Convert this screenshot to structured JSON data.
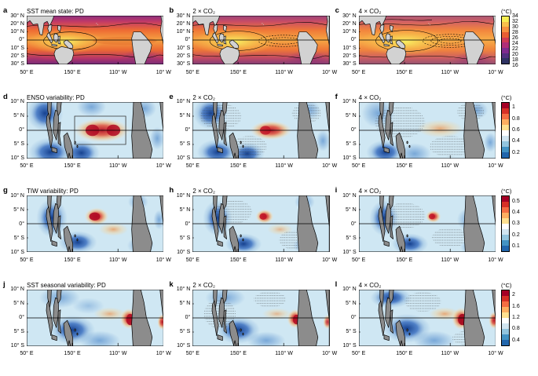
{
  "figure": {
    "rows": [
      {
        "panels": [
          {
            "letter": "a",
            "title": "SST mean state: PD"
          },
          {
            "letter": "b",
            "title": "2 × CO₂"
          },
          {
            "letter": "c",
            "title": "4 × CO₂"
          }
        ],
        "yticks": [
          "30° N",
          "20° N",
          "10° N",
          "0°",
          "10° S",
          "20° S",
          "30° S"
        ],
        "xticks": [
          "50° E",
          "150° E",
          "110° W",
          "10° W"
        ],
        "colorbar": {
          "unit": "(°C)",
          "ticks": [
            "34",
            "32",
            "30",
            "28",
            "26",
            "24",
            "22",
            "20",
            "18",
            "16"
          ],
          "colors": [
            "#f6ee53",
            "#f8c04b",
            "#f69140",
            "#e85e33",
            "#cf3a55",
            "#b02e77",
            "#7f2b8e",
            "#52307f",
            "#2f3263"
          ]
        }
      },
      {
        "panels": [
          {
            "letter": "d",
            "title": "ENSO variability: PD"
          },
          {
            "letter": "e",
            "title": "2 × CO₂"
          },
          {
            "letter": "f",
            "title": "4 × CO₂"
          }
        ],
        "yticks": [
          "10° N",
          "5° N",
          "0°",
          "5° S",
          "10° S"
        ],
        "xticks": [
          "50° E",
          "150° E",
          "110° W",
          "10° W"
        ],
        "colorbar": {
          "unit": "(°C)",
          "ticks": [
            "1",
            "0.8",
            "0.6",
            "0.4",
            "0.2"
          ],
          "colors": [
            "#a50026",
            "#d73027",
            "#f46d43",
            "#fdae61",
            "#fee090",
            "#ffffff",
            "#d1e5f0",
            "#92c5de",
            "#4393c3",
            "#2166ac"
          ]
        }
      },
      {
        "panels": [
          {
            "letter": "g",
            "title": "TIW variability: PD"
          },
          {
            "letter": "h",
            "title": "2 × CO₂"
          },
          {
            "letter": "i",
            "title": "4 × CO₂"
          }
        ],
        "yticks": [
          "10° N",
          "5° N",
          "0°",
          "5° S",
          "10° S"
        ],
        "xticks": [
          "50° E",
          "150° E",
          "110° W",
          "10° W"
        ],
        "colorbar": {
          "unit": "(°C)",
          "ticks": [
            "0.5",
            "0.4",
            "0.3",
            "0.2",
            "0.1"
          ],
          "colors": [
            "#a50026",
            "#d73027",
            "#f46d43",
            "#fdae61",
            "#fee090",
            "#ffffff",
            "#d1e5f0",
            "#92c5de",
            "#4393c3",
            "#2166ac"
          ]
        }
      },
      {
        "panels": [
          {
            "letter": "j",
            "title": "SST seasonal variability: PD"
          },
          {
            "letter": "k",
            "title": "2 × CO₂"
          },
          {
            "letter": "l",
            "title": "4 × CO₂"
          }
        ],
        "yticks": [
          "10° N",
          "5° N",
          "0°",
          "5° S",
          "10° S"
        ],
        "xticks": [
          "50° E",
          "150° E",
          "110° W",
          "10° W"
        ],
        "colorbar": {
          "unit": "(°C)",
          "ticks": [
            "2",
            "1.6",
            "1.2",
            "0.8",
            "0.4"
          ],
          "colors": [
            "#a50026",
            "#d73027",
            "#f46d43",
            "#fdae61",
            "#fee090",
            "#ffffff",
            "#d1e5f0",
            "#92c5de",
            "#4393c3",
            "#2166ac"
          ]
        }
      }
    ]
  },
  "chart_data": {
    "type": "heatmap",
    "lon_ticks": [
      "50° E",
      "150° E",
      "110° W",
      "10° W"
    ],
    "rows": [
      {
        "panels": [
          "a",
          "b",
          "c"
        ],
        "variable": "SST mean state",
        "scenarios": [
          "PD",
          "2 × CO₂",
          "4 × CO₂"
        ],
        "lat_ticks": [
          "30° N",
          "20° N",
          "10° N",
          "0°",
          "10° S",
          "20° S",
          "30° S"
        ],
        "colorbar_ticks": [
          34,
          32,
          30,
          28,
          26,
          24,
          22,
          20,
          18,
          16
        ],
        "unit": "°C"
      },
      {
        "panels": [
          "d",
          "e",
          "f"
        ],
        "variable": "ENSO variability",
        "scenarios": [
          "PD",
          "2 × CO₂",
          "4 × CO₂"
        ],
        "lat_ticks": [
          "10° N",
          "5° N",
          "0°",
          "5° S",
          "10° S"
        ],
        "colorbar_ticks": [
          1,
          0.8,
          0.6,
          0.4,
          0.2
        ],
        "unit": "°C"
      },
      {
        "panels": [
          "g",
          "h",
          "i"
        ],
        "variable": "TIW variability",
        "scenarios": [
          "PD",
          "2 × CO₂",
          "4 × CO₂"
        ],
        "lat_ticks": [
          "10° N",
          "5° N",
          "0°",
          "5° S",
          "10° S"
        ],
        "colorbar_ticks": [
          0.5,
          0.4,
          0.3,
          0.2,
          0.1
        ],
        "unit": "°C"
      },
      {
        "panels": [
          "j",
          "k",
          "l"
        ],
        "variable": "SST seasonal variability",
        "scenarios": [
          "PD",
          "2 × CO₂",
          "4 × CO₂"
        ],
        "lat_ticks": [
          "10° N",
          "5° N",
          "0°",
          "5° S",
          "10° S"
        ],
        "colorbar_ticks": [
          2,
          1.6,
          1.2,
          0.8,
          0.4
        ],
        "unit": "°C"
      }
    ]
  }
}
